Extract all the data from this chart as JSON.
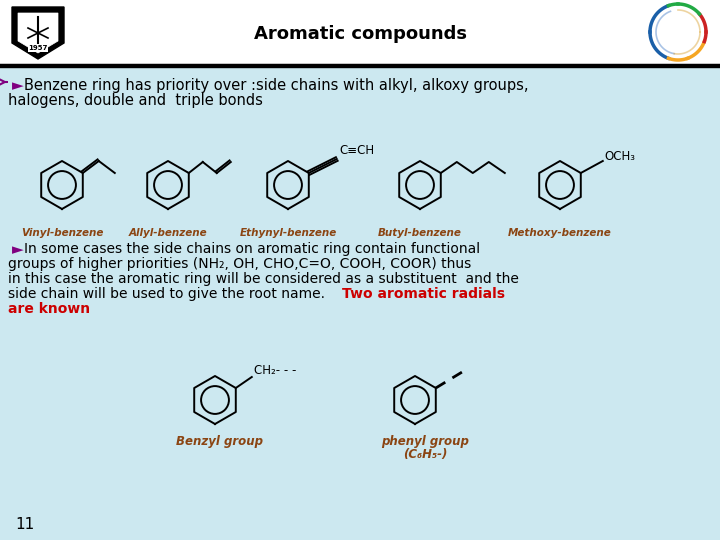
{
  "title": "Aromatic compounds",
  "background_color": "#cce8f0",
  "header_bg": "#ffffff",
  "title_color": "#000000",
  "title_fontsize": 13,
  "labels_color": "#8B4513",
  "label1": "Vinyl-benzene",
  "label2": "Allyl-benzene",
  "label3": "Ethynyl-benzene",
  "label4": "Butyl-benzene",
  "label5": "Methoxy-benzene",
  "label6": "Benzyl group",
  "label7": "phenyl group",
  "label7b": "(C₆H₅-)",
  "page_num": "11",
  "bullet_color": "#800080",
  "red_color": "#cc0000",
  "black": "#000000"
}
